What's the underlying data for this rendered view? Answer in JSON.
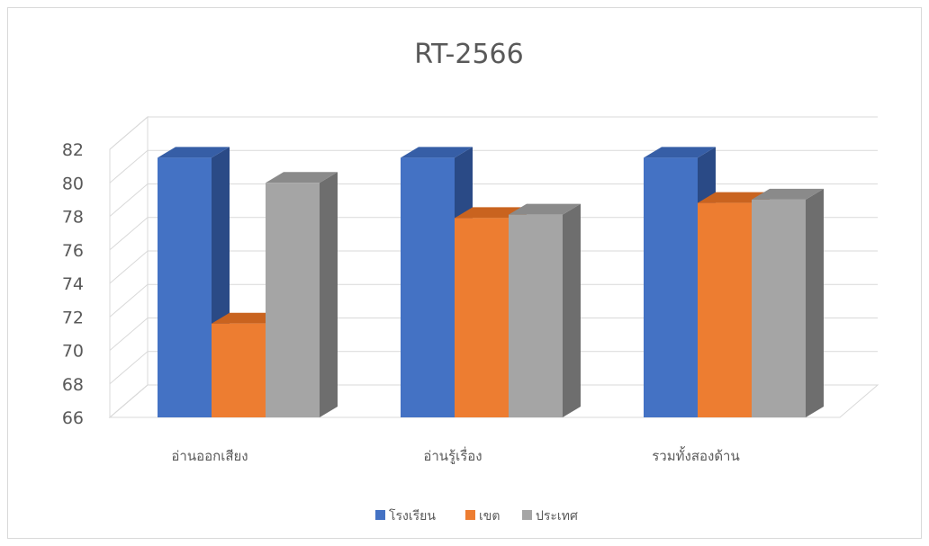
{
  "chart_data": {
    "type": "bar",
    "title": "RT-2566",
    "categories": [
      "อ่านออกเสียง",
      "อ่านรู้เรื่อง",
      "รวมทั้งสองด้าน"
    ],
    "series": [
      {
        "name": "โรงเรียน",
        "values": [
          81.5,
          81.5,
          81.5
        ]
      },
      {
        "name": "เขต",
        "values": [
          71.6,
          77.9,
          78.8
        ]
      },
      {
        "name": "ประเทศ",
        "values": [
          80.0,
          78.1,
          79.0
        ]
      }
    ],
    "ylim": [
      66,
      82
    ],
    "yticks": [
      66,
      68,
      70,
      72,
      74,
      76,
      78,
      80,
      82
    ],
    "grid": true,
    "legend_position": "bottom",
    "style": "3d-clustered-column"
  },
  "colors": {
    "series": [
      "#4472c4",
      "#ed7d31",
      "#a5a5a5"
    ],
    "series_side": [
      "#2a4a86",
      "#a8561f",
      "#6e6e6e"
    ],
    "series_top": [
      "#365ea6",
      "#c9631f",
      "#8a8a8a"
    ],
    "text": "#595959",
    "grid": "#d9d9d9"
  }
}
